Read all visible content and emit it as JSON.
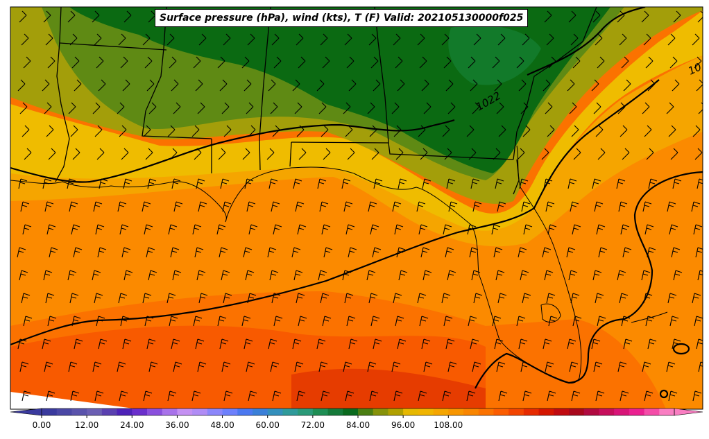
{
  "title": "Surface pressure (hPa), wind (kts), T (F) Valid: 202105130000f025",
  "colorbar": {
    "ticks": [
      "0.00",
      "12.00",
      "24.00",
      "36.00",
      "48.00",
      "60.00",
      "72.00",
      "84.00",
      "96.00",
      "108.00"
    ],
    "colors": [
      "#3a3a9e",
      "#4a47a5",
      "#5a53ac",
      "#6b5fb3",
      "#5a40b0",
      "#4d22b8",
      "#6a2fcc",
      "#8a4fdd",
      "#a872ea",
      "#c490f2",
      "#b08cf5",
      "#8b86fa",
      "#6d80fc",
      "#4b78f0",
      "#3a7fd8",
      "#338fbc",
      "#2f9a9a",
      "#2a9a78",
      "#1e8e54",
      "#157a3a",
      "#0a6a1e",
      "#4a7e12",
      "#86920a",
      "#b0a000",
      "#e6b800",
      "#f0b400",
      "#f5a500",
      "#f79500",
      "#f98500",
      "#fb7200",
      "#fb5c00",
      "#f24400",
      "#e62a00",
      "#d41500",
      "#c00a10",
      "#a8081c",
      "#b00a40",
      "#c60e5c",
      "#d81478",
      "#ea2090",
      "#f44ca8",
      "#f97ec2"
    ]
  },
  "contour_labels": [
    "1022",
    "10"
  ],
  "legend": {
    "units": "F"
  }
}
